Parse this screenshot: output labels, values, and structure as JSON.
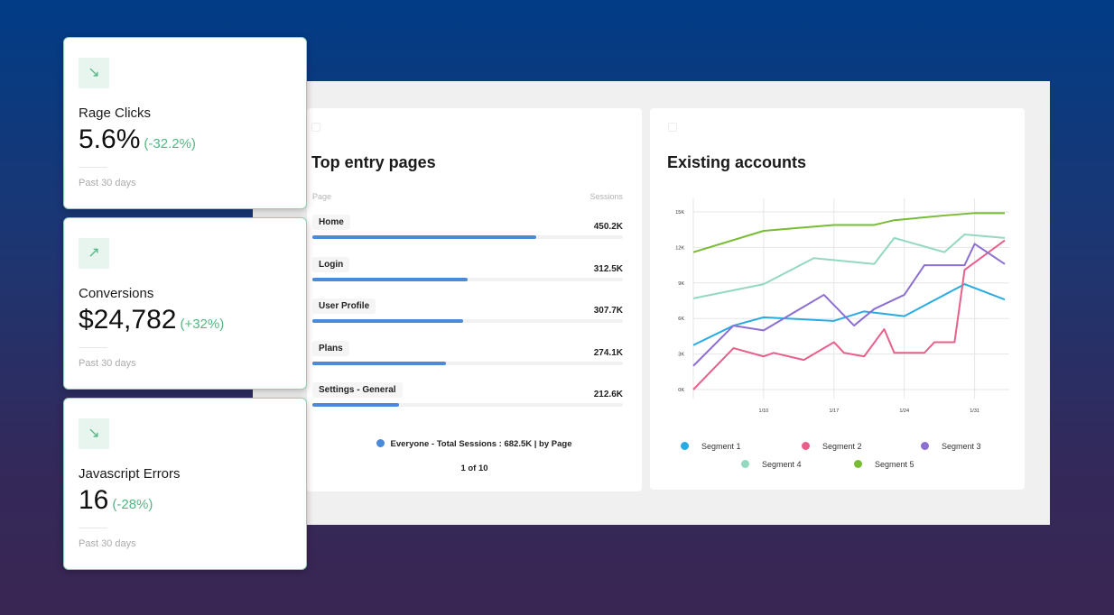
{
  "kpis": [
    {
      "label": "Rage Clicks",
      "value": "5.6%",
      "change": "(-32.2%)",
      "period": "Past 30 days",
      "icon": "arrow-down-right-icon"
    },
    {
      "label": "Conversions",
      "value": "$24,782",
      "change": "(+32%)",
      "period": "Past 30 days",
      "icon": "arrow-up-right-icon"
    },
    {
      "label": "Javascript Errors",
      "value": "16",
      "change": "(-28%)",
      "period": "Past 30 days",
      "icon": "arrow-down-right-icon"
    }
  ],
  "entry_pages": {
    "title": "Top entry pages",
    "col_page": "Page",
    "col_sessions": "Sessions",
    "rows": [
      {
        "page": "Home",
        "sessions": "450.2K",
        "fill": 0.72
      },
      {
        "page": "Login",
        "sessions": "312.5K",
        "fill": 0.5
      },
      {
        "page": "User Profile",
        "sessions": "307.7K",
        "fill": 0.485
      },
      {
        "page": "Plans",
        "sessions": "274.1K",
        "fill": 0.43
      },
      {
        "page": "Settings - General",
        "sessions": "212.6K",
        "fill": 0.28
      }
    ],
    "legend": "Everyone -  Total Sessions : 682.5K | by Page",
    "pager": "1 of 10",
    "bar_color": "#4a8ad8"
  },
  "accounts": {
    "title": "Existing accounts",
    "chart_data": {
      "type": "line",
      "title": "Existing accounts",
      "ylim": [
        0,
        15000
      ],
      "yticks": [
        "15K",
        "12K",
        "9K",
        "6K",
        "3K",
        "0K"
      ],
      "ytick_values": [
        15000,
        12000,
        9000,
        6000,
        3000,
        0
      ],
      "xticks": [
        "1/10",
        "1/17",
        "1/24",
        "1/31"
      ],
      "xlim": [
        "1/3",
        "2/3"
      ],
      "grid": true,
      "legend_position": "bottom",
      "series": [
        {
          "name": "Segment 1",
          "color": "#29abe2",
          "points": [
            [
              "1/3",
              3750
            ],
            [
              "1/7",
              5400
            ],
            [
              "1/10",
              6100
            ],
            [
              "1/17",
              5800
            ],
            [
              "1/20",
              6600
            ],
            [
              "1/24",
              6200
            ],
            [
              "1/30",
              8900
            ],
            [
              "2/3",
              7600
            ]
          ]
        },
        {
          "name": "Segment 2",
          "color": "#e8608a",
          "points": [
            [
              "1/3",
              0
            ],
            [
              "1/7",
              3500
            ],
            [
              "1/10",
              2800
            ],
            [
              "1/11",
              3100
            ],
            [
              "1/14",
              2500
            ],
            [
              "1/17",
              4000
            ],
            [
              "1/18",
              3100
            ],
            [
              "1/20",
              2800
            ],
            [
              "1/22",
              5100
            ],
            [
              "1/23",
              3100
            ],
            [
              "1/26",
              3100
            ],
            [
              "1/27",
              4000
            ],
            [
              "1/29",
              4000
            ],
            [
              "1/30",
              10100
            ],
            [
              "2/3",
              12600
            ]
          ]
        },
        {
          "name": "Segment 3",
          "color": "#8c6fd1",
          "points": [
            [
              "1/3",
              2000
            ],
            [
              "1/7",
              5400
            ],
            [
              "1/10",
              5000
            ],
            [
              "1/16",
              8000
            ],
            [
              "1/19",
              5400
            ],
            [
              "1/21",
              6800
            ],
            [
              "1/24",
              8000
            ],
            [
              "1/26",
              10500
            ],
            [
              "1/30",
              10500
            ],
            [
              "1/31",
              12300
            ],
            [
              "2/3",
              10600
            ]
          ]
        },
        {
          "name": "Segment 4",
          "color": "#93d9bf",
          "points": [
            [
              "1/3",
              7700
            ],
            [
              "1/10",
              8900
            ],
            [
              "1/15",
              11100
            ],
            [
              "1/21",
              10600
            ],
            [
              "1/23",
              12800
            ],
            [
              "1/28",
              11600
            ],
            [
              "1/30",
              13100
            ],
            [
              "2/3",
              12800
            ]
          ]
        },
        {
          "name": "Segment 5",
          "color": "#78bc35",
          "points": [
            [
              "1/3",
              11600
            ],
            [
              "1/10",
              13400
            ],
            [
              "1/17",
              13900
            ],
            [
              "1/21",
              13900
            ],
            [
              "1/23",
              14300
            ],
            [
              "1/28",
              14700
            ],
            [
              "1/31",
              14900
            ],
            [
              "2/3",
              14900
            ]
          ]
        }
      ]
    }
  }
}
